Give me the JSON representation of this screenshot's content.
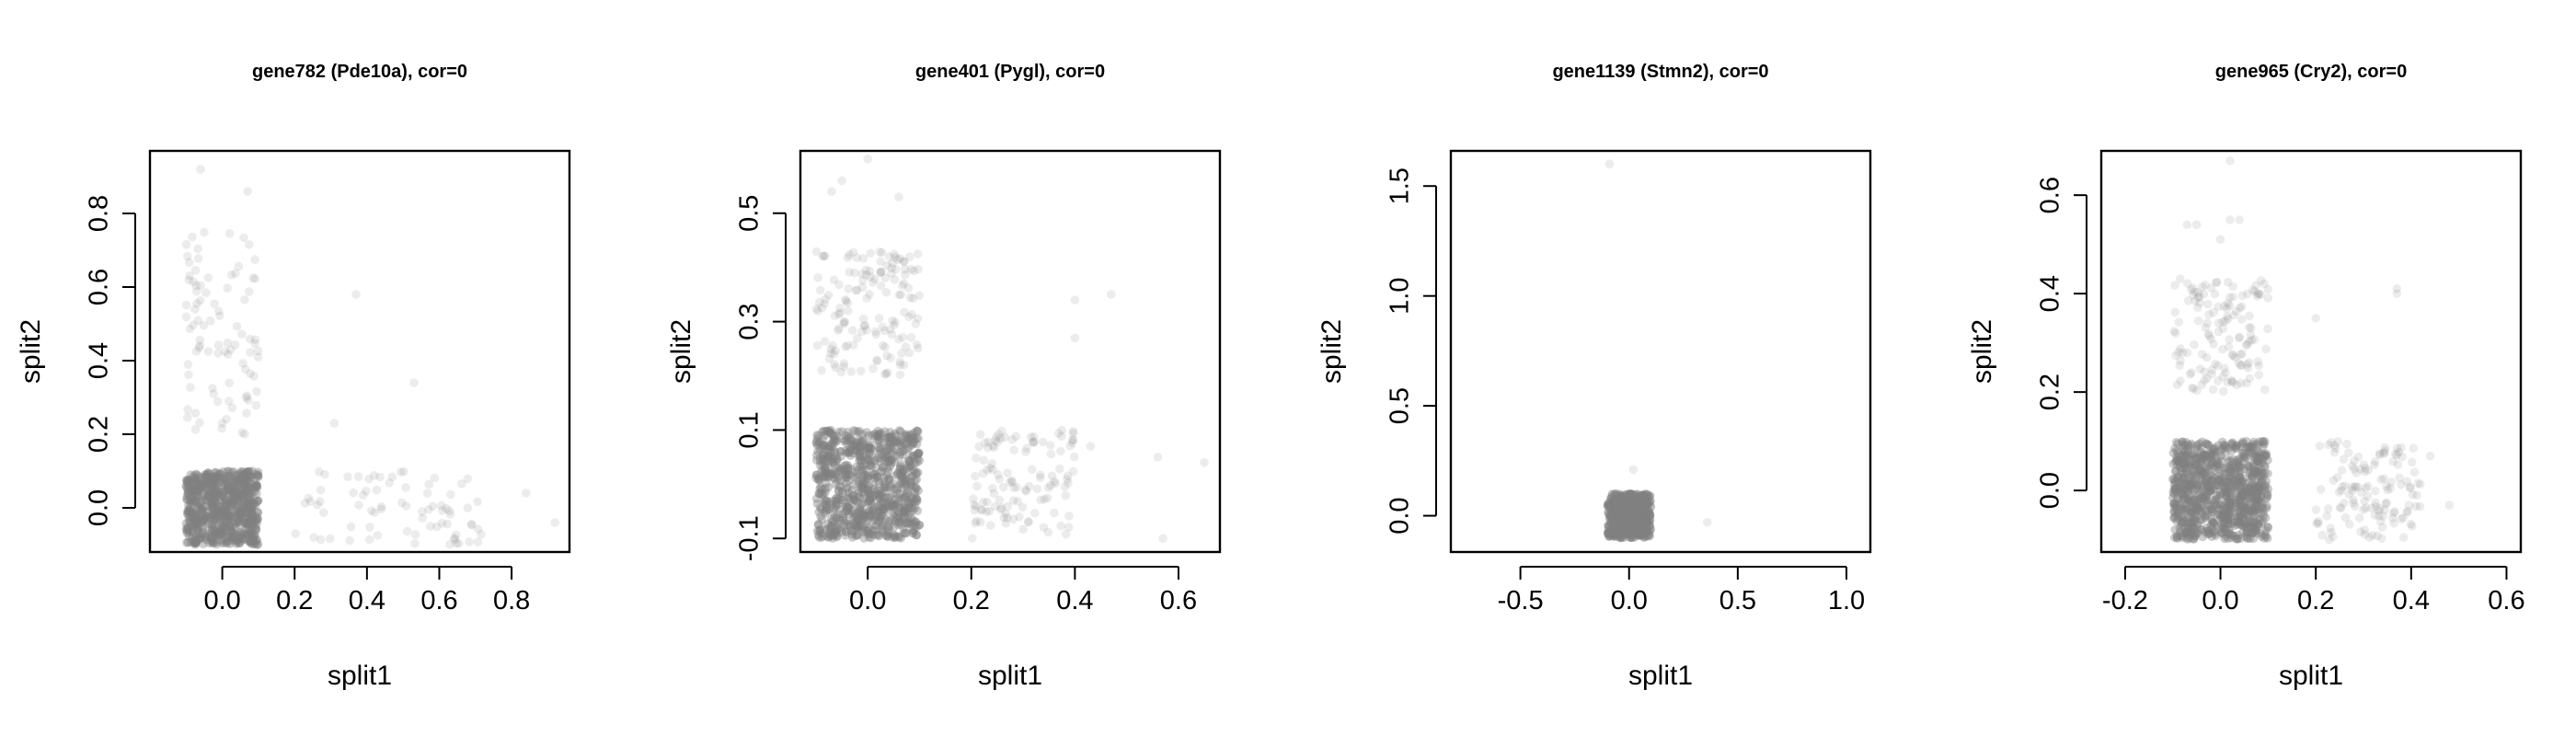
{
  "chart_data": [
    {
      "type": "scatter",
      "title": "gene782 (Pde10a), cor=0",
      "xlabel": "split1",
      "ylabel": "split2",
      "xlim": [
        -0.2,
        0.96
      ],
      "ylim": [
        -0.12,
        0.97
      ],
      "xticks": [
        "0.0",
        "0.2",
        "0.4",
        "0.6",
        "0.8"
      ],
      "yticks": [
        "0.0",
        "0.2",
        "0.4",
        "0.6",
        "0.8"
      ],
      "point_color": "#808080",
      "grid": false,
      "series": [
        {
          "cluster": "both-zero",
          "x_range": [
            -0.1,
            0.1
          ],
          "y_range": [
            -0.1,
            0.1
          ],
          "count": 700,
          "point_alpha": 0.4
        },
        {
          "cluster": "split2-only",
          "x_range": [
            -0.1,
            0.1
          ],
          "y_range": [
            0.2,
            0.75
          ],
          "count": 90,
          "point_alpha": 0.15
        },
        {
          "cluster": "split1-only",
          "x_range": [
            0.2,
            0.72
          ],
          "y_range": [
            -0.1,
            0.1
          ],
          "count": 75,
          "point_alpha": 0.15
        },
        {
          "cluster": "outliers",
          "point_alpha": 0.15,
          "points": [
            [
              -0.06,
              0.92
            ],
            [
              0.07,
              0.86
            ],
            [
              0.37,
              0.58
            ],
            [
              0.31,
              0.23
            ],
            [
              0.53,
              0.34
            ],
            [
              0.84,
              0.04
            ],
            [
              0.92,
              -0.04
            ]
          ]
        }
      ]
    },
    {
      "type": "scatter",
      "title": "gene401 (Pygl), cor=0",
      "xlabel": "split1",
      "ylabel": "split2",
      "xlim": [
        -0.13,
        0.68
      ],
      "ylim": [
        -0.125,
        0.615
      ],
      "xticks": [
        "0.0",
        "0.2",
        "0.4",
        "0.6"
      ],
      "yticks": [
        "-0.1",
        "0.1",
        "0.3",
        "0.5"
      ],
      "point_color": "#808080",
      "grid": false,
      "series": [
        {
          "cluster": "both-zero",
          "x_range": [
            -0.1,
            0.1
          ],
          "y_range": [
            -0.1,
            0.1
          ],
          "count": 850,
          "point_alpha": 0.4
        },
        {
          "cluster": "split2-only",
          "x_range": [
            -0.1,
            0.1
          ],
          "y_range": [
            0.2,
            0.43
          ],
          "count": 150,
          "point_alpha": 0.15
        },
        {
          "cluster": "split1-only",
          "x_range": [
            0.2,
            0.4
          ],
          "y_range": [
            -0.1,
            0.1
          ],
          "count": 120,
          "point_alpha": 0.15
        },
        {
          "cluster": "outliers",
          "point_alpha": 0.15,
          "points": [
            [
              -0.05,
              0.56
            ],
            [
              -0.07,
              0.54
            ],
            [
              0.0,
              0.6
            ],
            [
              0.06,
              0.53
            ],
            [
              0.4,
              0.34
            ],
            [
              0.47,
              0.35
            ],
            [
              0.4,
              0.27
            ],
            [
              0.43,
              0.07
            ],
            [
              0.56,
              0.05
            ],
            [
              0.65,
              0.04
            ],
            [
              0.57,
              -0.1
            ]
          ]
        }
      ]
    },
    {
      "type": "scatter",
      "title": "gene1139 (Stmn2), cor=0",
      "xlabel": "split1",
      "ylabel": "split2",
      "xlim": [
        -0.82,
        1.11
      ],
      "ylim": [
        -0.165,
        1.66
      ],
      "xticks": [
        "-0.5",
        "0.0",
        "0.5",
        "1.0"
      ],
      "yticks": [
        "0.0",
        "0.5",
        "1.0",
        "1.5"
      ],
      "point_color": "#808080",
      "grid": false,
      "series": [
        {
          "cluster": "both-zero",
          "x_range": [
            -0.1,
            0.1
          ],
          "y_range": [
            -0.1,
            0.1
          ],
          "count": 400,
          "point_alpha": 0.5
        },
        {
          "cluster": "outliers",
          "point_alpha": 0.15,
          "points": [
            [
              -0.09,
              1.6
            ],
            [
              0.02,
              0.21
            ],
            [
              0.36,
              -0.03
            ]
          ]
        }
      ]
    },
    {
      "type": "scatter",
      "title": "gene965 (Cry2), cor=0",
      "xlabel": "split1",
      "ylabel": "split2",
      "xlim": [
        -0.25,
        0.63
      ],
      "ylim": [
        -0.125,
        0.69
      ],
      "xticks": [
        "-0.2",
        "0.0",
        "0.2",
        "0.4",
        "0.6"
      ],
      "yticks": [
        "0.0",
        "0.2",
        "0.4",
        "0.6"
      ],
      "point_color": "#808080",
      "grid": false,
      "series": [
        {
          "cluster": "both-zero",
          "x_range": [
            -0.1,
            0.1
          ],
          "y_range": [
            -0.1,
            0.1
          ],
          "count": 900,
          "point_alpha": 0.4
        },
        {
          "cluster": "split2-only",
          "x_range": [
            -0.1,
            0.1
          ],
          "y_range": [
            0.2,
            0.43
          ],
          "count": 140,
          "point_alpha": 0.15
        },
        {
          "cluster": "split1-only",
          "x_range": [
            0.2,
            0.42
          ],
          "y_range": [
            -0.1,
            0.1
          ],
          "count": 130,
          "point_alpha": 0.15
        },
        {
          "cluster": "outliers",
          "point_alpha": 0.15,
          "points": [
            [
              -0.07,
              0.54
            ],
            [
              -0.05,
              0.54
            ],
            [
              0.0,
              0.51
            ],
            [
              0.02,
              0.55
            ],
            [
              0.04,
              0.55
            ],
            [
              0.02,
              0.67
            ],
            [
              0.2,
              0.35
            ],
            [
              0.37,
              0.41
            ],
            [
              0.37,
              0.4
            ],
            [
              0.44,
              0.07
            ],
            [
              0.48,
              -0.03
            ]
          ]
        }
      ]
    }
  ]
}
